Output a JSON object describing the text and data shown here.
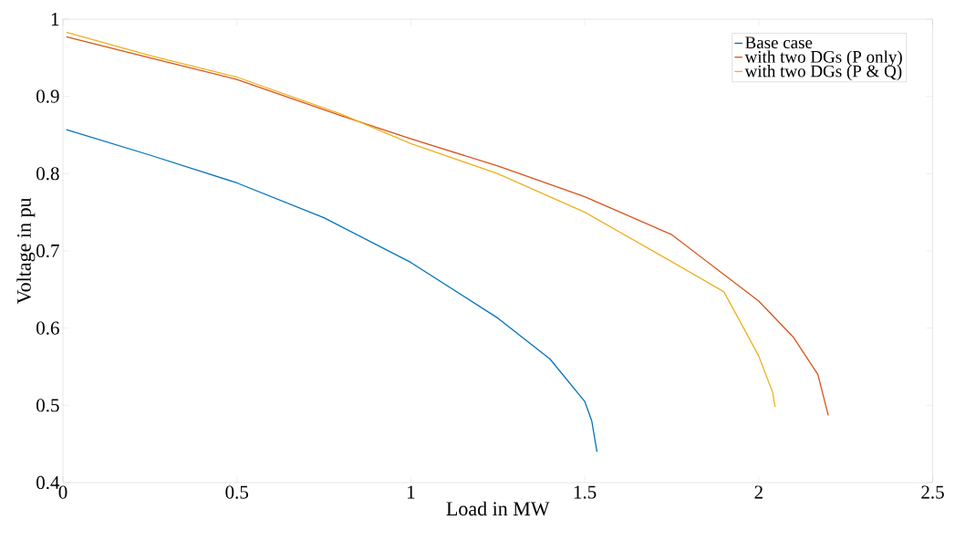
{
  "chart_data": {
    "type": "line",
    "xlabel": "Load in MW",
    "ylabel": "Voltage in pu",
    "xlim": [
      0,
      2.5
    ],
    "ylim": [
      0.4,
      1
    ],
    "xticks": [
      0,
      0.5,
      1,
      1.5,
      2,
      2.5
    ],
    "yticks": [
      0.4,
      0.5,
      0.6,
      0.7,
      0.8,
      0.9,
      1
    ],
    "grid": false,
    "legend": "top right",
    "marker": "none",
    "line_style": "solid",
    "series": [
      {
        "name": "Base case",
        "color": "#0072bd",
        "x": [
          0.01,
          0.25,
          0.5,
          0.75,
          1.0,
          1.25,
          1.4,
          1.5,
          1.52,
          1.535
        ],
        "values": [
          0.857,
          0.824,
          0.788,
          0.743,
          0.685,
          0.613,
          0.56,
          0.505,
          0.48,
          0.44
        ]
      },
      {
        "name": "with two DGs (P only)",
        "color": "#d95319",
        "x": [
          0.01,
          0.25,
          0.5,
          0.8,
          1.0,
          1.25,
          1.5,
          1.75,
          2.0,
          2.1,
          2.17,
          2.2
        ],
        "values": [
          0.977,
          0.95,
          0.922,
          0.875,
          0.845,
          0.81,
          0.77,
          0.721,
          0.635,
          0.588,
          0.54,
          0.487
        ]
      },
      {
        "name": "with two DGs (P & Q)",
        "color": "#edb120",
        "x": [
          0.01,
          0.25,
          0.5,
          0.8,
          1.0,
          1.25,
          1.5,
          1.75,
          1.9,
          2.0,
          2.04,
          2.047
        ],
        "values": [
          0.983,
          0.953,
          0.925,
          0.877,
          0.839,
          0.8,
          0.75,
          0.686,
          0.647,
          0.564,
          0.517,
          0.498
        ]
      }
    ]
  }
}
